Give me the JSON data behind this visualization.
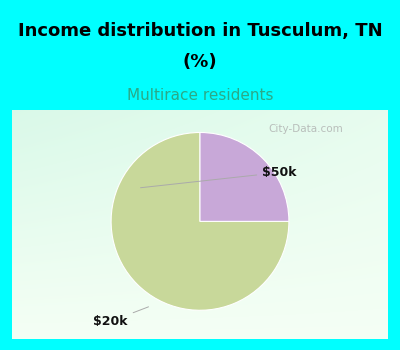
{
  "title_line1": "Income distribution in Tusculum, TN",
  "title_line2": "(%)",
  "subtitle": "Multirace residents",
  "title_color": "#000000",
  "subtitle_color": "#2aaa88",
  "bg_color": "#00ffff",
  "chart_bg_tl": [
    0.78,
    0.96,
    0.88,
    1.0
  ],
  "chart_bg_br": [
    0.96,
    1.0,
    0.96,
    1.0
  ],
  "slices": [
    {
      "label": "$20k",
      "value": 75,
      "color": "#c8d89a"
    },
    {
      "label": "$50k",
      "value": 25,
      "color": "#c8a8d8"
    }
  ],
  "startangle": 90,
  "watermark": "City-Data.com",
  "figsize": [
    4.0,
    3.5
  ],
  "dpi": 100,
  "title_fontsize": 13,
  "subtitle_fontsize": 11
}
